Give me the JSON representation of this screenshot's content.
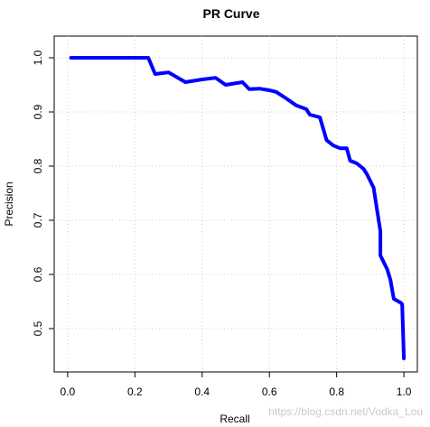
{
  "chart_data": {
    "type": "line",
    "title": "PR Curve",
    "xlabel": "Recall",
    "ylabel": "Precision",
    "xlim": [
      -0.04,
      1.04
    ],
    "ylim": [
      0.42,
      1.04
    ],
    "x_ticks": [
      0.0,
      0.2,
      0.4,
      0.6,
      0.8,
      1.0
    ],
    "x_tick_labels": [
      "0.0",
      "0.2",
      "0.4",
      "0.6",
      "0.8",
      "1.0"
    ],
    "y_ticks": [
      0.5,
      0.6,
      0.7,
      0.8,
      0.9,
      1.0
    ],
    "y_tick_labels": [
      "0.5",
      "0.6",
      "0.7",
      "0.8",
      "0.9",
      "1.0"
    ],
    "grid": true,
    "legend": "none",
    "series": [
      {
        "color": "#0000ff",
        "x": [
          0.01,
          0.06,
          0.12,
          0.18,
          0.24,
          0.26,
          0.3,
          0.35,
          0.4,
          0.44,
          0.47,
          0.5,
          0.52,
          0.54,
          0.57,
          0.6,
          0.62,
          0.65,
          0.68,
          0.71,
          0.72,
          0.75,
          0.77,
          0.79,
          0.81,
          0.83,
          0.84,
          0.86,
          0.88,
          0.89,
          0.91,
          0.92,
          0.93,
          0.93,
          0.95,
          0.96,
          0.97,
          0.99,
          0.995,
          1.0
        ],
        "y": [
          1.0,
          1.0,
          1.0,
          1.0,
          1.0,
          0.97,
          0.973,
          0.955,
          0.96,
          0.963,
          0.95,
          0.953,
          0.955,
          0.942,
          0.943,
          0.94,
          0.937,
          0.925,
          0.912,
          0.905,
          0.895,
          0.89,
          0.848,
          0.838,
          0.833,
          0.833,
          0.81,
          0.805,
          0.795,
          0.785,
          0.76,
          0.72,
          0.68,
          0.635,
          0.61,
          0.59,
          0.555,
          0.548,
          0.545,
          0.445
        ]
      }
    ]
  },
  "watermark": "https://blog.csdn.net/Vodka_Lou"
}
